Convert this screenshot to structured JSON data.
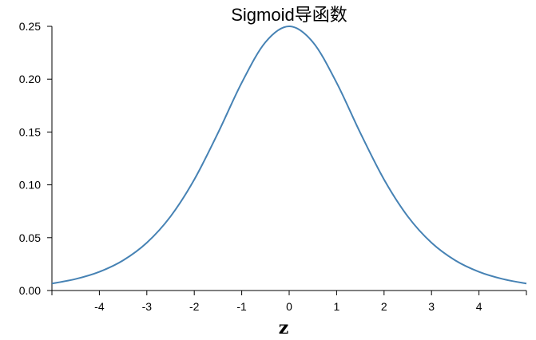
{
  "chart_data": {
    "type": "line",
    "title": "Sigmoid导函数",
    "xlabel": "z",
    "ylabel": "",
    "xlim": [
      -5,
      5
    ],
    "ylim": [
      0,
      0.25
    ],
    "x_ticks": [
      -4,
      -3,
      -2,
      -1,
      0,
      1,
      2,
      3,
      4
    ],
    "x_tick_labels": [
      "-4",
      "-3",
      "-2",
      "-1",
      "0",
      "1",
      "2",
      "3",
      "4"
    ],
    "y_ticks": [
      0,
      0.05,
      0.1,
      0.15,
      0.2,
      0.25
    ],
    "y_tick_labels": [
      "0.00",
      "0.05",
      "0.10",
      "0.15",
      "0.20",
      "0.25"
    ],
    "grid": false,
    "legend": "none",
    "line_color": "#4682b4",
    "series": [
      {
        "x": [
          -5,
          -4.5,
          -4,
          -3.5,
          -3,
          -2.5,
          -2,
          -1.5,
          -1,
          -0.5,
          0,
          0.5,
          1,
          1.5,
          2,
          2.5,
          3,
          3.5,
          4,
          4.5,
          5
        ],
        "values": [
          0.0066,
          0.0109,
          0.0177,
          0.0285,
          0.0452,
          0.0701,
          0.105,
          0.1491,
          0.1966,
          0.235,
          0.25,
          0.235,
          0.1966,
          0.1491,
          0.105,
          0.0701,
          0.0452,
          0.0285,
          0.0177,
          0.0109,
          0.0066
        ]
      }
    ]
  }
}
